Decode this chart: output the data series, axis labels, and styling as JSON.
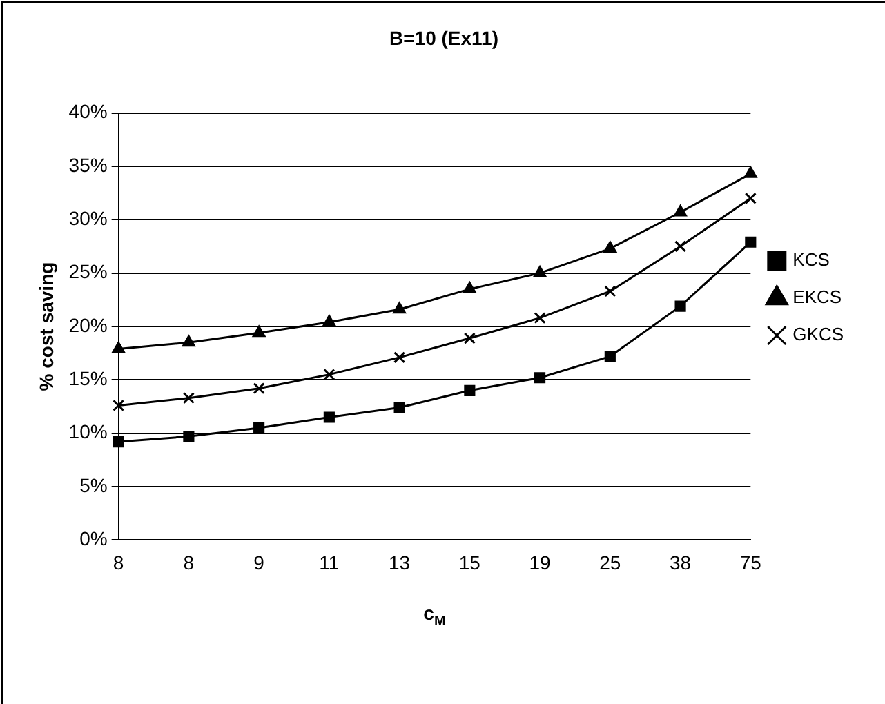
{
  "chart_data": {
    "type": "line",
    "title": "B=10 (Ex11)",
    "xlabel": "c$_{M}$",
    "ylabel": "% cost saving",
    "categories": [
      "8",
      "8",
      "9",
      "11",
      "13",
      "15",
      "19",
      "25",
      "38",
      "75"
    ],
    "series": [
      {
        "name": "KCS",
        "color": "#000000",
        "marker": "square",
        "values": [
          9.2,
          9.7,
          10.5,
          11.5,
          12.4,
          14.0,
          15.2,
          17.2,
          21.9,
          27.9
        ]
      },
      {
        "name": "EKCS",
        "color": "#000000",
        "marker": "triangle",
        "values": [
          17.9,
          18.5,
          19.4,
          20.4,
          21.6,
          23.5,
          25.0,
          27.3,
          30.7,
          34.3
        ]
      },
      {
        "name": "GKCS",
        "color": "#000000",
        "marker": "cross",
        "values": [
          12.6,
          13.3,
          14.2,
          15.5,
          17.1,
          18.9,
          20.8,
          23.3,
          27.5,
          32.0
        ]
      }
    ],
    "ylim": [
      0,
      40
    ],
    "yticks": [
      {
        "value": 0,
        "label": "0%"
      },
      {
        "value": 5,
        "label": "5%"
      },
      {
        "value": 10,
        "label": "10%"
      },
      {
        "value": 15,
        "label": "15%"
      },
      {
        "value": 20,
        "label": "20%"
      },
      {
        "value": 25,
        "label": "25%"
      },
      {
        "value": 30,
        "label": "30%"
      },
      {
        "value": 35,
        "label": "35%"
      },
      {
        "value": 40,
        "label": "40%"
      }
    ],
    "grid": "y",
    "legend": "right",
    "line_style": "solid"
  }
}
